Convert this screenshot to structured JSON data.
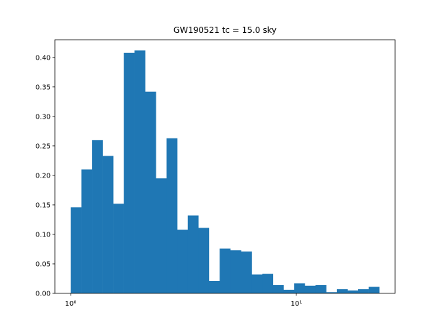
{
  "chart_data": {
    "type": "histogram",
    "title": "GW190521 tc = 15.0 sky",
    "color": "#1f77b4",
    "xscale": "log",
    "bins": [
      1.0,
      1.115,
      1.243,
      1.385,
      1.544,
      1.721,
      1.919,
      2.139,
      2.385,
      2.658,
      2.963,
      3.303,
      3.681,
      4.104,
      4.575,
      5.1,
      5.684,
      6.337,
      7.065,
      7.874,
      8.779,
      9.786,
      10.91,
      12.16,
      13.56,
      15.11,
      16.85,
      18.78,
      20.94,
      23.33
    ],
    "values": [
      0.146,
      0.21,
      0.26,
      0.233,
      0.152,
      0.408,
      0.412,
      0.342,
      0.195,
      0.263,
      0.108,
      0.132,
      0.111,
      0.021,
      0.076,
      0.073,
      0.071,
      0.032,
      0.033,
      0.014,
      0.006,
      0.017,
      0.013,
      0.014,
      0.002,
      0.007,
      0.005,
      0.007,
      0.011
    ],
    "xlim": [
      0.851,
      27.4
    ],
    "ylim": [
      0,
      0.43
    ],
    "xticks": [
      {
        "value": 1,
        "label": "10⁰"
      },
      {
        "value": 10,
        "label": "10¹"
      }
    ],
    "yticks": [
      {
        "value": 0,
        "label": "0.00"
      },
      {
        "value": 0.05,
        "label": "0.05"
      },
      {
        "value": 0.1,
        "label": "0.10"
      },
      {
        "value": 0.15,
        "label": "0.15"
      },
      {
        "value": 0.2,
        "label": "0.20"
      },
      {
        "value": 0.25,
        "label": "0.25"
      },
      {
        "value": 0.3,
        "label": "0.30"
      },
      {
        "value": 0.35,
        "label": "0.35"
      },
      {
        "value": 0.4,
        "label": "0.40"
      }
    ]
  }
}
